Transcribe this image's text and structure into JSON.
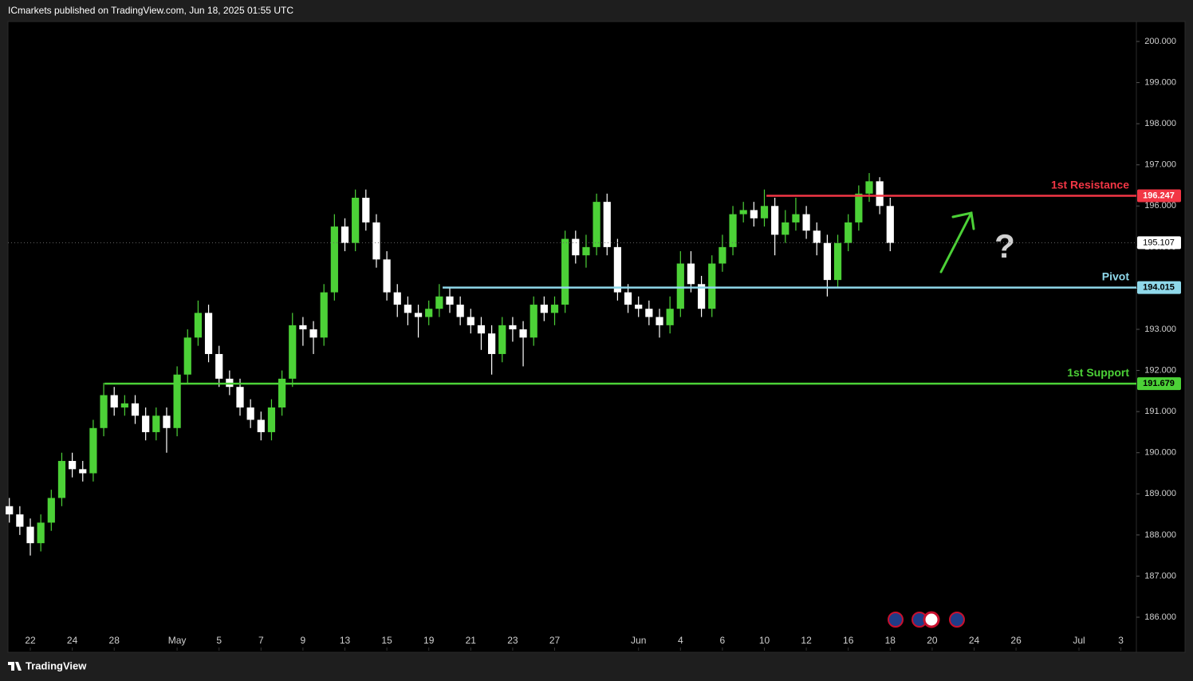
{
  "header": "ICmarkets published on TradingView.com, Jun 18, 2025 01:55 UTC",
  "footer": "TradingView",
  "chart_data": {
    "type": "candlestick",
    "annotation": "?",
    "up_color": "#4cd137",
    "down_color": "#ffffff",
    "x": [
      -1.0,
      -0.5,
      0.0,
      0.5,
      1.0,
      1.5,
      2.0,
      2.5,
      3.0,
      3.5,
      4.0,
      4.5,
      5.0,
      5.5,
      6.0,
      6.5,
      7.0,
      7.5,
      8.0,
      8.5,
      9.0,
      9.5,
      10.0,
      10.5,
      11.0,
      11.5,
      12.0,
      12.5,
      13.0,
      13.5,
      14.0,
      14.5,
      15.0,
      15.5,
      16.0,
      16.5,
      17.0,
      17.5,
      18.0,
      18.5,
      19.0,
      19.5,
      20.0,
      20.5,
      21.0,
      21.5,
      22.0,
      22.5,
      23.0,
      23.5,
      24.0,
      24.5,
      25.0,
      25.5,
      26.0,
      26.5,
      27.0,
      27.5,
      28.0,
      28.5,
      29.0,
      29.5,
      30.0,
      30.5,
      31.0,
      31.5,
      32.0,
      32.5,
      33.0,
      33.5,
      34.0,
      34.5,
      35.0,
      35.5,
      36.0,
      36.5,
      37.0,
      37.5,
      38.0,
      38.5,
      39.0,
      39.5,
      40.0,
      40.5,
      41.0
    ],
    "open": [
      188.7,
      188.5,
      188.2,
      187.8,
      188.3,
      188.9,
      189.8,
      189.6,
      189.5,
      190.6,
      191.4,
      191.1,
      191.2,
      190.9,
      190.5,
      190.9,
      190.6,
      191.9,
      192.8,
      193.4,
      192.4,
      191.8,
      191.6,
      191.1,
      190.8,
      190.5,
      191.1,
      191.8,
      193.1,
      193.0,
      192.8,
      193.9,
      195.5,
      195.1,
      196.2,
      195.6,
      194.7,
      193.9,
      193.6,
      193.4,
      193.3,
      193.5,
      193.8,
      193.6,
      193.3,
      193.1,
      192.9,
      192.4,
      193.1,
      193.0,
      192.8,
      193.6,
      193.4,
      193.6,
      195.2,
      194.8,
      195.0,
      196.1,
      195.0,
      193.9,
      193.6,
      193.5,
      193.3,
      193.1,
      193.5,
      194.6,
      194.1,
      193.5,
      194.6,
      195.0,
      195.8,
      195.9,
      195.7,
      196.0,
      195.3,
      195.6,
      195.8,
      195.4,
      195.1,
      194.2,
      195.1,
      195.6,
      196.3,
      196.6,
      196.0
    ],
    "high": [
      188.9,
      188.7,
      188.4,
      188.5,
      189.1,
      190.0,
      190.0,
      189.8,
      190.8,
      191.7,
      191.6,
      191.4,
      191.4,
      191.1,
      191.1,
      191.1,
      192.1,
      193.0,
      193.7,
      193.6,
      192.6,
      192.0,
      191.8,
      191.3,
      191.0,
      191.3,
      192.0,
      193.4,
      193.3,
      193.2,
      194.1,
      195.8,
      195.7,
      196.4,
      196.4,
      195.8,
      194.9,
      194.1,
      193.8,
      193.6,
      193.7,
      194.1,
      194.0,
      193.8,
      193.5,
      193.3,
      193.1,
      193.3,
      193.3,
      193.2,
      193.8,
      193.8,
      193.8,
      195.4,
      195.4,
      195.3,
      196.3,
      196.3,
      195.2,
      194.1,
      193.8,
      193.7,
      193.5,
      193.8,
      194.9,
      194.9,
      194.3,
      194.8,
      195.3,
      196.0,
      196.1,
      196.1,
      196.4,
      196.2,
      195.9,
      196.2,
      196.0,
      195.6,
      195.3,
      195.3,
      195.8,
      196.5,
      196.8,
      196.7,
      196.2
    ],
    "low": [
      188.3,
      188.0,
      187.5,
      187.6,
      188.1,
      188.7,
      189.4,
      189.3,
      189.3,
      190.4,
      190.9,
      190.9,
      190.7,
      190.3,
      190.3,
      190.0,
      190.4,
      191.7,
      192.6,
      192.2,
      191.6,
      191.4,
      190.9,
      190.6,
      190.3,
      190.3,
      190.9,
      191.6,
      192.6,
      192.4,
      192.6,
      193.7,
      194.9,
      194.9,
      195.4,
      194.5,
      193.7,
      193.3,
      193.1,
      192.8,
      193.1,
      193.3,
      193.4,
      193.1,
      192.9,
      192.5,
      191.9,
      192.2,
      192.7,
      192.1,
      192.6,
      193.2,
      193.1,
      193.4,
      194.6,
      194.5,
      194.8,
      194.8,
      193.7,
      193.4,
      193.3,
      193.1,
      192.8,
      192.9,
      193.3,
      193.9,
      193.3,
      193.3,
      194.4,
      194.8,
      195.6,
      195.5,
      195.5,
      194.8,
      195.1,
      195.4,
      195.2,
      194.8,
      193.8,
      194.0,
      194.9,
      195.4,
      196.1,
      195.8,
      194.9
    ],
    "close": [
      188.5,
      188.2,
      187.8,
      188.3,
      188.9,
      189.8,
      189.6,
      189.5,
      190.6,
      191.4,
      191.1,
      191.2,
      190.9,
      190.5,
      190.9,
      190.6,
      191.9,
      192.8,
      193.4,
      192.4,
      191.8,
      191.6,
      191.1,
      190.8,
      190.5,
      191.1,
      191.8,
      193.1,
      193.0,
      192.8,
      193.9,
      195.5,
      195.1,
      196.2,
      195.6,
      194.7,
      193.9,
      193.6,
      193.4,
      193.3,
      193.5,
      193.8,
      193.6,
      193.3,
      193.1,
      192.9,
      192.4,
      193.1,
      193.0,
      192.8,
      193.6,
      193.4,
      193.6,
      195.2,
      194.8,
      195.0,
      196.1,
      195.0,
      193.9,
      193.6,
      193.5,
      193.3,
      193.1,
      193.5,
      194.6,
      194.1,
      193.5,
      194.6,
      195.0,
      195.8,
      195.9,
      195.7,
      196.0,
      195.3,
      195.6,
      195.8,
      195.4,
      195.1,
      194.2,
      195.1,
      195.6,
      196.3,
      196.6,
      196.0,
      195.1
    ],
    "xlim": [
      -1.065,
      52.738
    ],
    "ylim": [
      185.147,
      200.485
    ],
    "xticks": [
      {
        "value": 0,
        "label": "22"
      },
      {
        "value": 2,
        "label": "24"
      },
      {
        "value": 4,
        "label": "28"
      },
      {
        "value": 7,
        "label": "May"
      },
      {
        "value": 9,
        "label": "5"
      },
      {
        "value": 11,
        "label": "7"
      },
      {
        "value": 13,
        "label": "9"
      },
      {
        "value": 15,
        "label": "13"
      },
      {
        "value": 17,
        "label": "15"
      },
      {
        "value": 19,
        "label": "19"
      },
      {
        "value": 21,
        "label": "21"
      },
      {
        "value": 23,
        "label": "23"
      },
      {
        "value": 25,
        "label": "27"
      },
      {
        "value": 29,
        "label": "Jun"
      },
      {
        "value": 31,
        "label": "4"
      },
      {
        "value": 33,
        "label": "6"
      },
      {
        "value": 35,
        "label": "10"
      },
      {
        "value": 37,
        "label": "12"
      },
      {
        "value": 39,
        "label": "16"
      },
      {
        "value": 41,
        "label": "18"
      },
      {
        "value": 43,
        "label": "20"
      },
      {
        "value": 45,
        "label": "24"
      },
      {
        "value": 47,
        "label": "26"
      },
      {
        "value": 50,
        "label": "Jul"
      },
      {
        "value": 52,
        "label": "3"
      }
    ],
    "yticks": [
      {
        "value": 186,
        "label": "186.000"
      },
      {
        "value": 187,
        "label": "187.000"
      },
      {
        "value": 188,
        "label": "188.000"
      },
      {
        "value": 189,
        "label": "189.000"
      },
      {
        "value": 190,
        "label": "190.000"
      },
      {
        "value": 191,
        "label": "191.000"
      },
      {
        "value": 192,
        "label": "192.000"
      },
      {
        "value": 193,
        "label": "193.000"
      },
      {
        "value": 194,
        "label": "194.000"
      },
      {
        "value": 195,
        "label": "195.000"
      },
      {
        "value": 196,
        "label": "196.000"
      },
      {
        "value": 197,
        "label": "197.000"
      },
      {
        "value": 198,
        "label": "198.000"
      },
      {
        "value": 199,
        "label": "199.000"
      },
      {
        "value": 200,
        "label": "200.000"
      }
    ],
    "last_price": 195.107,
    "levels": [
      {
        "name": "1st Resistance",
        "value": 196.247,
        "start": 35.1,
        "color": "#f23645",
        "text_color": "#ffffff"
      },
      {
        "name": "Pivot",
        "value": 194.015,
        "start": 19.66,
        "color": "#8fd8ea",
        "text_color": "#000000"
      },
      {
        "name": "1st Support",
        "value": 191.679,
        "start": 3.54,
        "color": "#4cd137",
        "text_color": "#000000"
      }
    ]
  }
}
